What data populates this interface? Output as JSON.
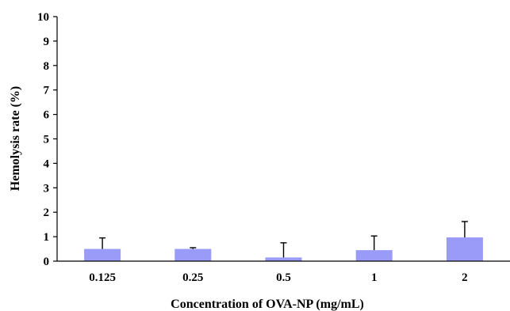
{
  "chart_data": {
    "type": "bar",
    "title": "",
    "xlabel": "Concentration of OVA-NP (mg/mL)",
    "ylabel": "Hemolysis rate (%)",
    "categories": [
      "0.125",
      "0.25",
      "0.5",
      "1",
      "2"
    ],
    "values": [
      0.5,
      0.5,
      0.15,
      0.45,
      0.97
    ],
    "error_upper": [
      0.45,
      0.05,
      0.6,
      0.58,
      0.65
    ],
    "ylim": [
      0,
      10
    ],
    "yticks": [
      "0",
      "1",
      "2",
      "3",
      "4",
      "5",
      "6",
      "7",
      "8",
      "9",
      "10"
    ],
    "grid": false,
    "legend": "none",
    "bar_color": "#9a9bf8",
    "error_bar_color": "#000000"
  }
}
